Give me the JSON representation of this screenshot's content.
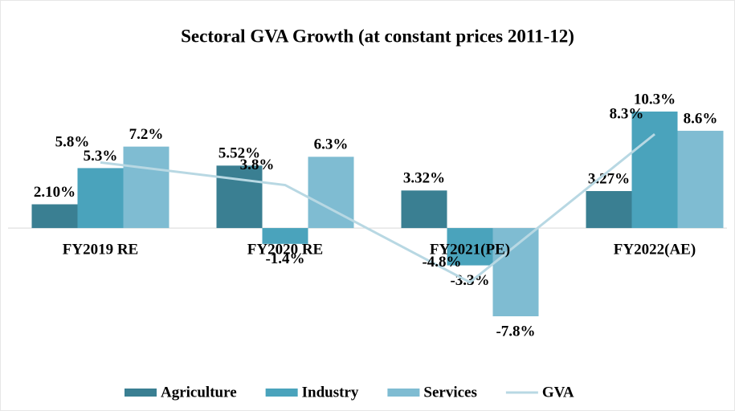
{
  "chart_data": {
    "type": "bar",
    "title": "Sectoral GVA Growth (at constant prices 2011-12)",
    "categories": [
      "FY2019 RE",
      "FY2020 RE",
      "FY2021(PE)",
      "FY2022(AE)"
    ],
    "ylim": [
      -10,
      12
    ],
    "series": [
      {
        "name": "Agriculture",
        "color": "#3a7f92",
        "values": [
          2.1,
          5.52,
          3.32,
          3.27
        ],
        "value_labels": [
          "2.10%",
          "5.52%",
          "3.32%",
          "3.27%"
        ]
      },
      {
        "name": "Industry",
        "color": "#4aa3bc",
        "values": [
          5.3,
          -1.4,
          -3.3,
          10.3
        ],
        "value_labels": [
          "5.3%",
          "-1.4%",
          "-3.3%",
          "10.3%"
        ]
      },
      {
        "name": "Services",
        "color": "#7fbcd2",
        "values": [
          7.2,
          6.3,
          -7.8,
          8.6
        ],
        "value_labels": [
          "7.2%",
          "6.3%",
          "-7.8%",
          "8.6%"
        ]
      },
      {
        "name": "GVA",
        "type": "line",
        "color": "#b8d8e3",
        "values": [
          5.8,
          3.8,
          -4.8,
          8.3
        ],
        "value_labels": [
          "5.8%",
          "3.8%",
          "-4.8%",
          "8.3%"
        ]
      }
    ]
  }
}
